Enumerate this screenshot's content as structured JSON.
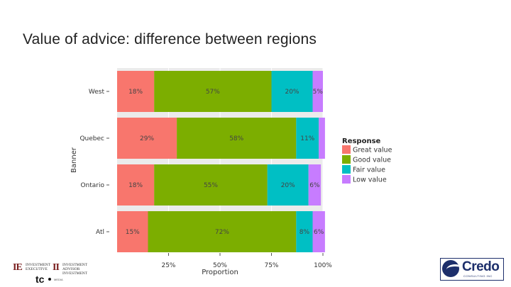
{
  "slide": {
    "title": "Value of advice: difference between regions"
  },
  "chart_data": {
    "type": "bar",
    "orientation": "horizontal",
    "stacked": true,
    "title": "",
    "xlabel": "Proportion",
    "ylabel": "Banner",
    "xlim": [
      0,
      1
    ],
    "x_ticks": [
      "25%",
      "50%",
      "75%",
      "100%"
    ],
    "x_tick_values": [
      0.25,
      0.5,
      0.75,
      1.0
    ],
    "categories": [
      "West",
      "Quebec",
      "Ontario",
      "Atl"
    ],
    "series": [
      {
        "name": "Great value",
        "color": "#f8766d",
        "values": [
          0.18,
          0.29,
          0.18,
          0.15
        ],
        "labels": [
          "18%",
          "29%",
          "18%",
          "15%"
        ]
      },
      {
        "name": "Good value",
        "color": "#7cae00",
        "values": [
          0.57,
          0.58,
          0.55,
          0.72
        ],
        "labels": [
          "57%",
          "58%",
          "55%",
          "72%"
        ]
      },
      {
        "name": "Fair value",
        "color": "#00bfc4",
        "values": [
          0.2,
          0.11,
          0.2,
          0.08
        ],
        "labels": [
          "20%",
          "11%",
          "20%",
          "8%"
        ]
      },
      {
        "name": "Low value",
        "color": "#c77cff",
        "values": [
          0.05,
          0.03,
          0.06,
          0.06
        ],
        "labels": [
          "5%",
          "",
          "6%",
          "6%"
        ]
      }
    ],
    "legend": {
      "title": "Response",
      "position": "right"
    },
    "grid": true,
    "background": "#ebebeb"
  },
  "logos": {
    "ie": "IE",
    "ie_text": "INVESTMENT EXECUTIVE",
    "ii": "II",
    "ii_text": "INVESTMENT ADVISOR INVESTMENT",
    "tc": "tc",
    "tc_text": "MEDIA",
    "credo_word": "Credo",
    "credo_sub": "CONSULTING INC"
  }
}
